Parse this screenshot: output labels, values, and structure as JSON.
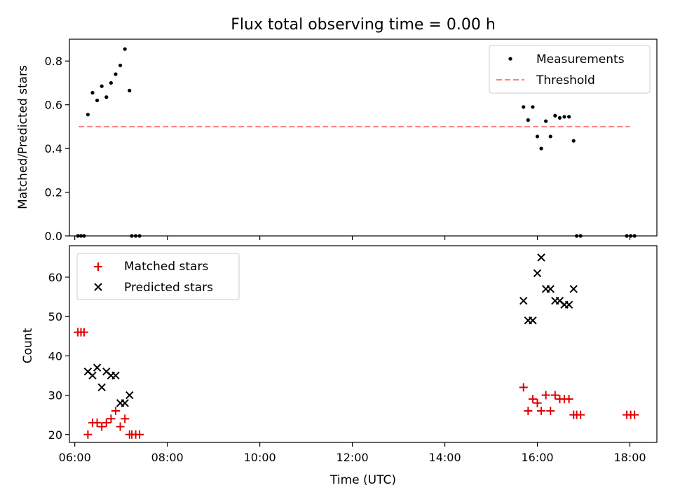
{
  "title": "Flux total observing time = 0.00 h",
  "colors": {
    "measurements": "#000000",
    "threshold": "#ff7f7f",
    "matched": "#e00000",
    "predicted": "#000000"
  },
  "chart_data": [
    {
      "type": "scatter",
      "ylabel": "Matched/Predicted stars",
      "xlim": [
        "05:53",
        "18:35"
      ],
      "ylim": [
        0,
        0.9
      ],
      "yticks": [
        "0.0",
        "0.2",
        "0.4",
        "0.6",
        "0.8"
      ],
      "xticks": [
        "06:00",
        "08:00",
        "10:00",
        "12:00",
        "14:00",
        "16:00",
        "18:00"
      ],
      "legend_position": "top-right",
      "series": [
        {
          "name": "Measurements",
          "kind": "dots",
          "points": [
            [
              "06:04",
              0
            ],
            [
              "06:08",
              0
            ],
            [
              "06:12",
              0
            ],
            [
              "06:17",
              0.555
            ],
            [
              "06:23",
              0.655
            ],
            [
              "06:29",
              0.62
            ],
            [
              "06:35",
              0.685
            ],
            [
              "06:41",
              0.635
            ],
            [
              "06:47",
              0.7
            ],
            [
              "06:53",
              0.74
            ],
            [
              "06:59",
              0.78
            ],
            [
              "07:05",
              0.855
            ],
            [
              "07:11",
              0.665
            ],
            [
              "07:14",
              0
            ],
            [
              "07:19",
              0
            ],
            [
              "07:24",
              0
            ],
            [
              "15:42",
              0.59
            ],
            [
              "15:48",
              0.53
            ],
            [
              "15:54",
              0.59
            ],
            [
              "16:00",
              0.455
            ],
            [
              "16:05",
              0.4
            ],
            [
              "16:11",
              0.525
            ],
            [
              "16:17",
              0.455
            ],
            [
              "16:23",
              0.55
            ],
            [
              "16:29",
              0.54
            ],
            [
              "16:35",
              0.545
            ],
            [
              "16:41",
              0.545
            ],
            [
              "16:47",
              0.435
            ],
            [
              "16:51",
              0
            ],
            [
              "16:56",
              0
            ],
            [
              "17:56",
              0
            ],
            [
              "18:01",
              0
            ],
            [
              "18:06",
              0
            ]
          ]
        },
        {
          "name": "Threshold",
          "kind": "dashed-line",
          "points": [
            [
              "06:05",
              0.5
            ],
            [
              "18:00",
              0.5
            ]
          ]
        }
      ]
    },
    {
      "type": "scatter",
      "xlabel": "Time (UTC)",
      "ylabel": "Count",
      "xlim": [
        "05:53",
        "18:35"
      ],
      "ylim": [
        18,
        68
      ],
      "yticks": [
        "20",
        "30",
        "40",
        "50",
        "60"
      ],
      "xticks": [
        "06:00",
        "08:00",
        "10:00",
        "12:00",
        "14:00",
        "16:00",
        "18:00"
      ],
      "legend_position": "top-left",
      "series": [
        {
          "name": "Matched stars",
          "kind": "plus",
          "points": [
            [
              "06:04",
              46
            ],
            [
              "06:08",
              46
            ],
            [
              "06:12",
              46
            ],
            [
              "06:17",
              20
            ],
            [
              "06:23",
              23
            ],
            [
              "06:29",
              23
            ],
            [
              "06:35",
              22
            ],
            [
              "06:41",
              23
            ],
            [
              "06:47",
              24
            ],
            [
              "06:53",
              26
            ],
            [
              "06:59",
              22
            ],
            [
              "07:05",
              24
            ],
            [
              "07:11",
              20
            ],
            [
              "07:14",
              20
            ],
            [
              "07:19",
              20
            ],
            [
              "07:24",
              20
            ],
            [
              "15:42",
              32
            ],
            [
              "15:48",
              26
            ],
            [
              "15:54",
              29
            ],
            [
              "16:00",
              28
            ],
            [
              "16:05",
              26
            ],
            [
              "16:11",
              30
            ],
            [
              "16:17",
              26
            ],
            [
              "16:23",
              30
            ],
            [
              "16:29",
              29
            ],
            [
              "16:35",
              29
            ],
            [
              "16:41",
              29
            ],
            [
              "16:47",
              25
            ],
            [
              "16:51",
              25
            ],
            [
              "16:56",
              25
            ],
            [
              "17:56",
              25
            ],
            [
              "18:01",
              25
            ],
            [
              "18:06",
              25
            ]
          ]
        },
        {
          "name": "Predicted stars",
          "kind": "cross",
          "points": [
            [
              "06:17",
              36
            ],
            [
              "06:23",
              35
            ],
            [
              "06:29",
              37
            ],
            [
              "06:35",
              32
            ],
            [
              "06:41",
              36
            ],
            [
              "06:47",
              35
            ],
            [
              "06:53",
              35
            ],
            [
              "06:59",
              28
            ],
            [
              "07:05",
              28
            ],
            [
              "07:11",
              30
            ],
            [
              "15:42",
              54
            ],
            [
              "15:48",
              49
            ],
            [
              "15:54",
              49
            ],
            [
              "16:00",
              61
            ],
            [
              "16:05",
              65
            ],
            [
              "16:11",
              57
            ],
            [
              "16:17",
              57
            ],
            [
              "16:23",
              54
            ],
            [
              "16:29",
              54
            ],
            [
              "16:35",
              53
            ],
            [
              "16:41",
              53
            ],
            [
              "16:47",
              57
            ]
          ]
        }
      ]
    }
  ]
}
